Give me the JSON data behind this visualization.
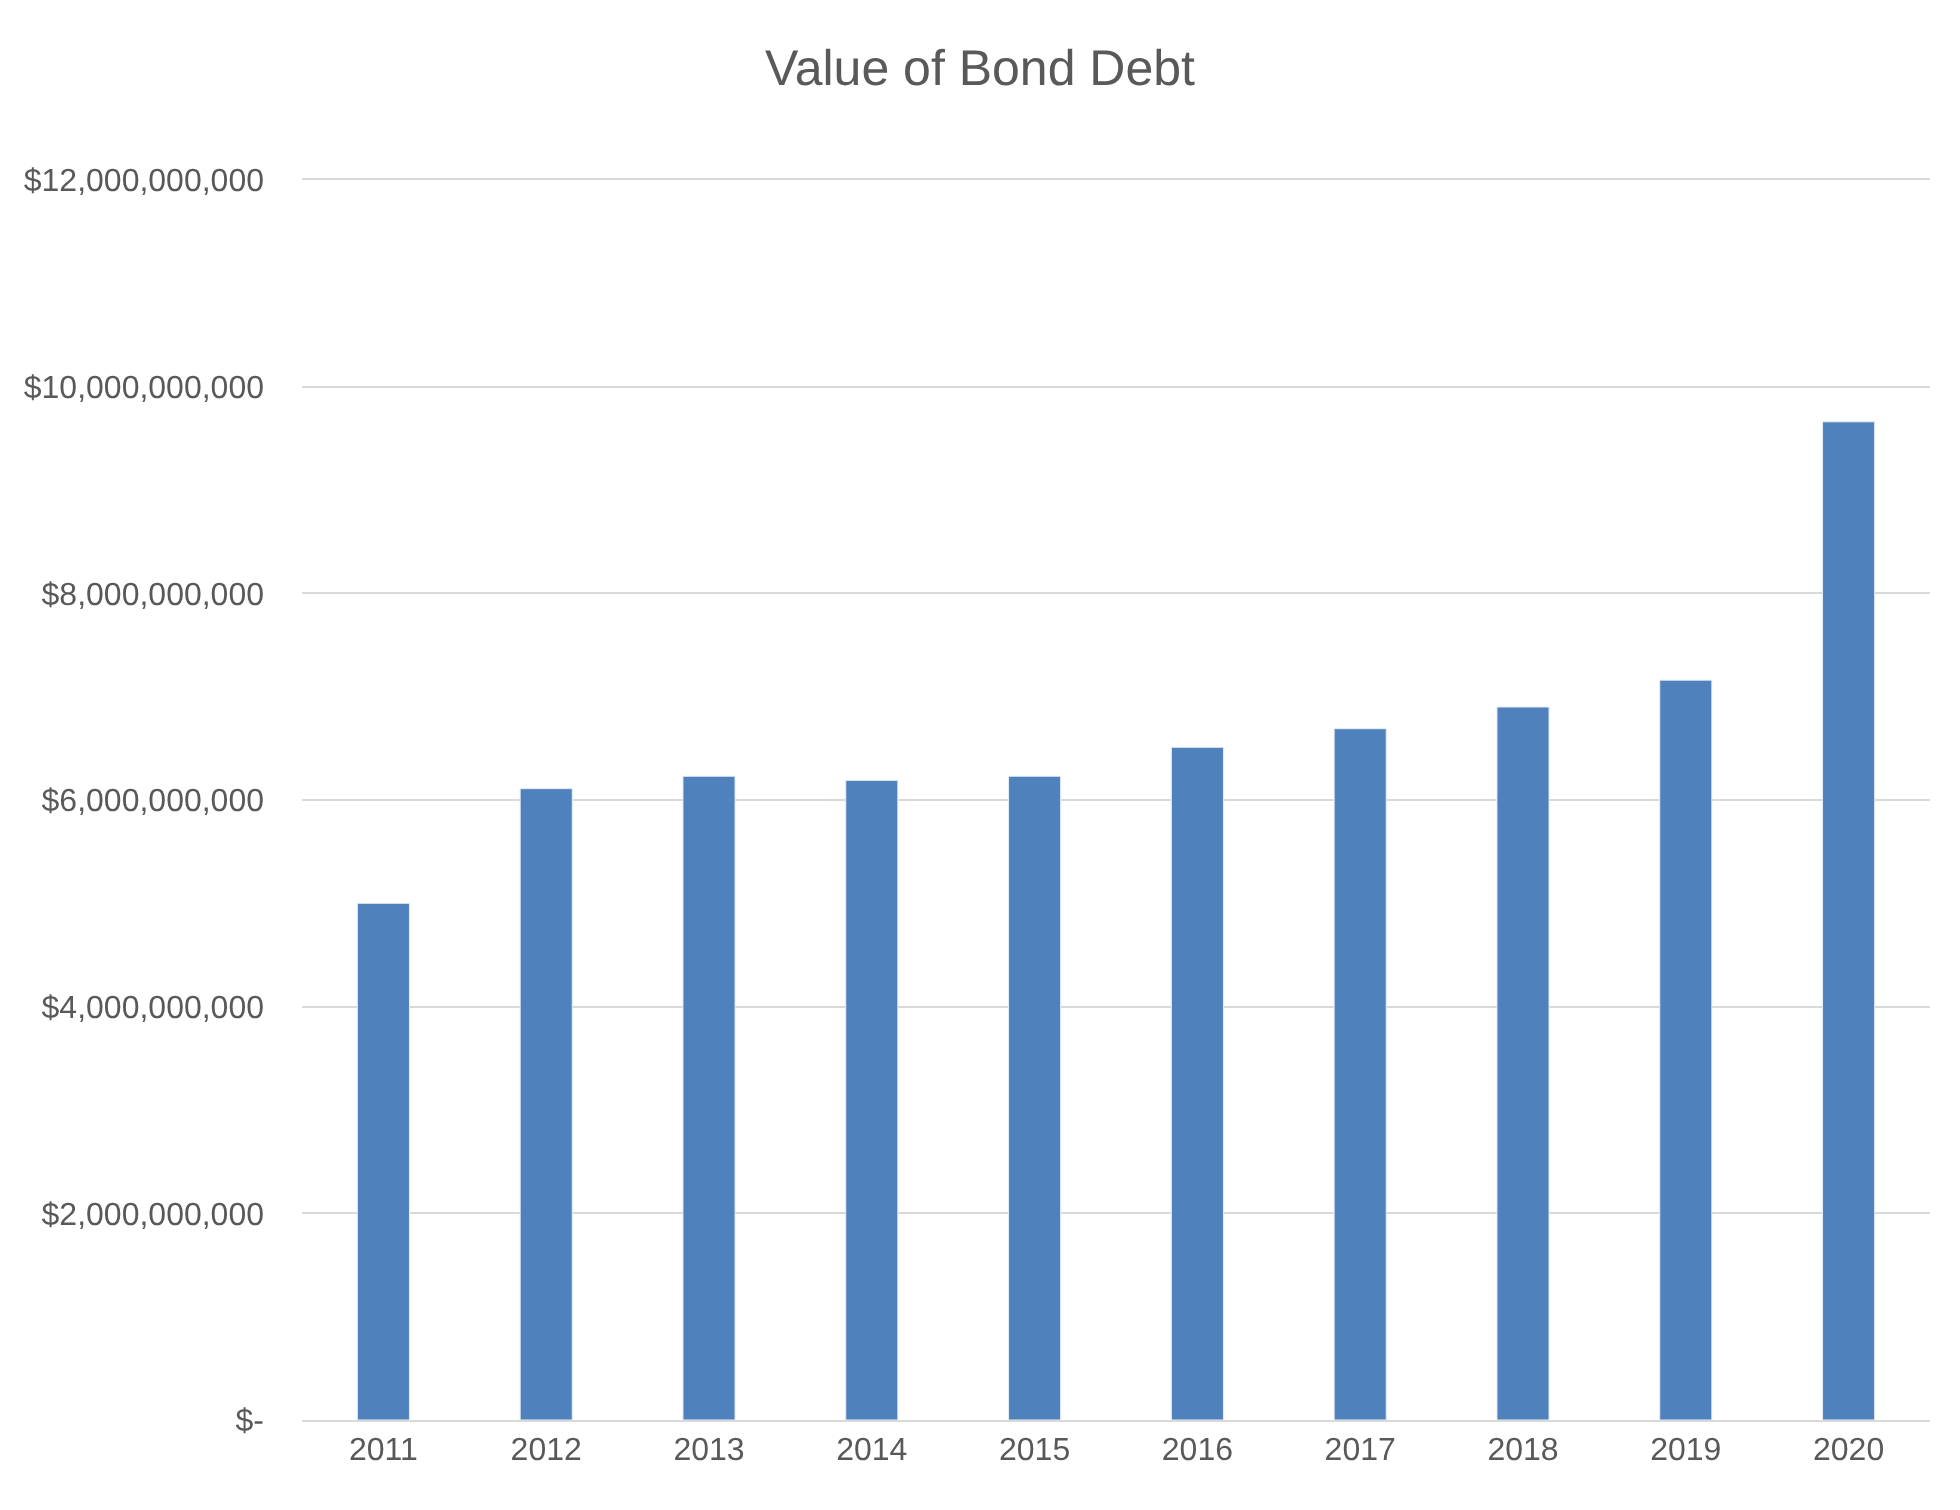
{
  "chart_data": {
    "type": "bar",
    "title": "Value of Bond Debt",
    "categories": [
      "2011",
      "2012",
      "2013",
      "2014",
      "2015",
      "2016",
      "2017",
      "2018",
      "2019",
      "2020"
    ],
    "values": [
      5000000000,
      6110000000,
      6230000000,
      6190000000,
      6230000000,
      6510000000,
      6690000000,
      6900000000,
      7160000000,
      9660000000
    ],
    "color": "#4f81bd",
    "ylim": [
      0,
      12000000000
    ],
    "yticks": [
      {
        "value": 0,
        "label": "$-"
      },
      {
        "value": 2000000000,
        "label": "$2,000,000,000"
      },
      {
        "value": 4000000000,
        "label": "$4,000,000,000"
      },
      {
        "value": 6000000000,
        "label": "$6,000,000,000"
      },
      {
        "value": 8000000000,
        "label": "$8,000,000,000"
      },
      {
        "value": 10000000000,
        "label": "$10,000,000,000"
      },
      {
        "value": 12000000000,
        "label": "$12,000,000,000"
      }
    ],
    "grid": "y"
  }
}
